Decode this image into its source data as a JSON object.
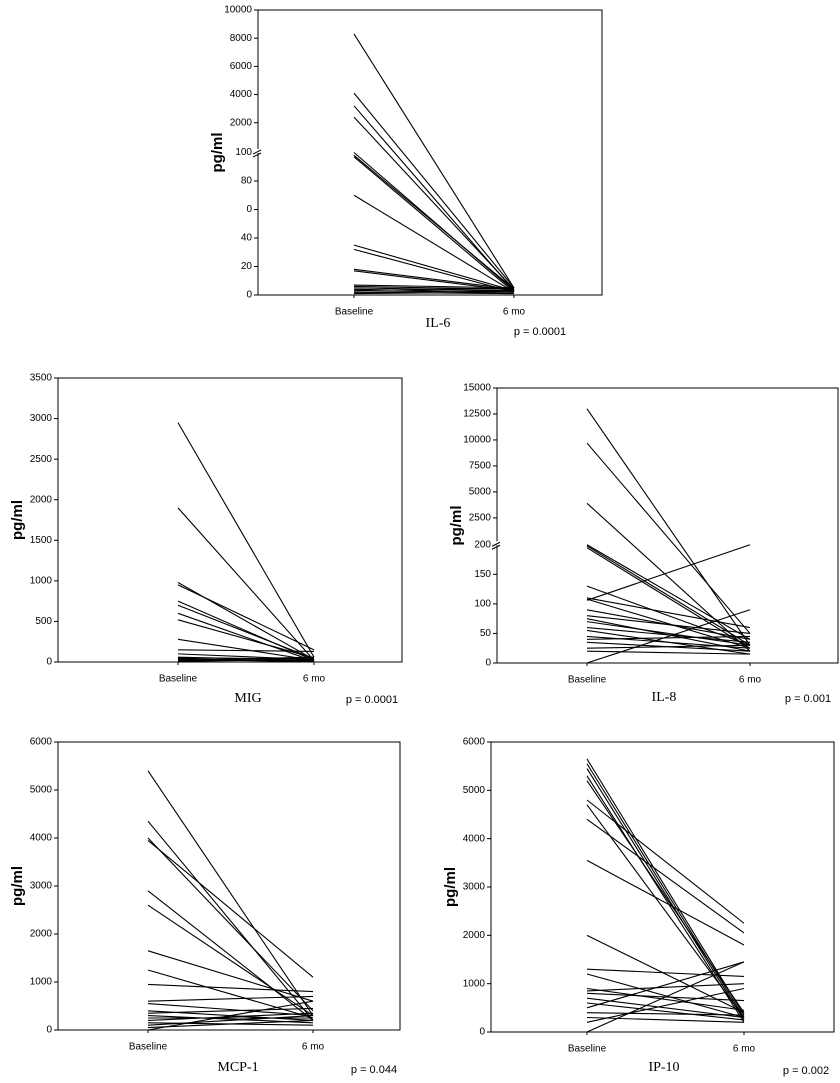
{
  "chart_data": [
    {
      "type": "line",
      "title": "IL-6",
      "annotation": "p = 0.0001",
      "y_label": "pg/ml",
      "categories": [
        "Baseline",
        "6 mo"
      ],
      "ylim": [
        0,
        10000
      ],
      "axis_break": 100,
      "yticks": [
        0,
        20,
        40,
        {
          "value": 60,
          "label": "0"
        },
        80,
        100,
        2000,
        4000,
        6000,
        8000,
        10000
      ],
      "color": "#000000",
      "series": [
        {
          "values": [
            8300,
            5
          ]
        },
        {
          "values": [
            4100,
            5
          ]
        },
        {
          "values": [
            3200,
            3
          ]
        },
        {
          "values": [
            2400,
            4
          ]
        },
        {
          "values": [
            100,
            3
          ]
        },
        {
          "values": [
            98,
            4
          ]
        },
        {
          "values": [
            97,
            2
          ]
        },
        {
          "values": [
            70,
            2
          ]
        },
        {
          "values": [
            35,
            3
          ]
        },
        {
          "values": [
            32,
            2
          ]
        },
        {
          "values": [
            18,
            4
          ]
        },
        {
          "values": [
            17,
            3
          ]
        },
        {
          "values": [
            7,
            5
          ]
        },
        {
          "values": [
            6,
            4
          ]
        },
        {
          "values": [
            5,
            3
          ]
        },
        {
          "values": [
            4,
            2
          ]
        },
        {
          "values": [
            3,
            5
          ]
        },
        {
          "values": [
            2,
            3
          ]
        },
        {
          "values": [
            2,
            1
          ]
        },
        {
          "values": [
            1,
            2
          ]
        }
      ]
    },
    {
      "type": "line",
      "title": "MIG",
      "annotation": "p = 0.0001",
      "y_label": "pg/ml",
      "categories": [
        "Baseline",
        "6 mo"
      ],
      "ylim": [
        0,
        3500
      ],
      "yticks": [
        0,
        500,
        1000,
        1500,
        2000,
        2500,
        3000,
        3500
      ],
      "color": "#000000",
      "series": [
        {
          "values": [
            2950,
            60
          ]
        },
        {
          "values": [
            1900,
            20
          ]
        },
        {
          "values": [
            980,
            30
          ]
        },
        {
          "values": [
            950,
            150
          ]
        },
        {
          "values": [
            750,
            20
          ]
        },
        {
          "values": [
            700,
            40
          ]
        },
        {
          "values": [
            600,
            10
          ]
        },
        {
          "values": [
            520,
            50
          ]
        },
        {
          "values": [
            280,
            20
          ]
        },
        {
          "values": [
            150,
            130
          ]
        },
        {
          "values": [
            100,
            30
          ]
        },
        {
          "values": [
            60,
            20
          ]
        },
        {
          "values": [
            50,
            40
          ]
        },
        {
          "values": [
            40,
            10
          ]
        },
        {
          "values": [
            30,
            5
          ]
        },
        {
          "values": [
            20,
            60
          ]
        },
        {
          "values": [
            10,
            30
          ]
        }
      ]
    },
    {
      "type": "line",
      "title": "IL-8",
      "annotation": "p = 0.001",
      "y_label": "pg/ml",
      "categories": [
        "Baseline",
        "6 mo"
      ],
      "ylim": [
        0,
        15000
      ],
      "axis_break": 200,
      "yticks": [
        0,
        50,
        100,
        150,
        200,
        2500,
        5000,
        7500,
        10000,
        12500,
        15000
      ],
      "color": "#000000",
      "series": [
        {
          "values": [
            13000,
            30
          ]
        },
        {
          "values": [
            9700,
            50
          ]
        },
        {
          "values": [
            3900,
            20
          ]
        },
        {
          "values": [
            200,
            40
          ]
        },
        {
          "values": [
            198,
            30
          ]
        },
        {
          "values": [
            195,
            25
          ]
        },
        {
          "values": [
            130,
            30
          ]
        },
        {
          "values": [
            110,
            60
          ]
        },
        {
          "values": [
            108,
            25
          ]
        },
        {
          "values": [
            106,
            200
          ]
        },
        {
          "values": [
            0,
            90
          ]
        },
        {
          "values": [
            90,
            40
          ]
        },
        {
          "values": [
            80,
            50
          ]
        },
        {
          "values": [
            75,
            20
          ]
        },
        {
          "values": [
            70,
            30
          ]
        },
        {
          "values": [
            60,
            35
          ]
        },
        {
          "values": [
            55,
            15
          ]
        },
        {
          "values": [
            45,
            25
          ]
        },
        {
          "values": [
            40,
            45
          ]
        },
        {
          "values": [
            35,
            20
          ]
        },
        {
          "values": [
            25,
            30
          ]
        },
        {
          "values": [
            20,
            15
          ]
        }
      ]
    },
    {
      "type": "line",
      "title": "MCP-1",
      "annotation": "p = 0.044",
      "y_label": "pg/ml",
      "categories": [
        "Baseline",
        "6 mo"
      ],
      "ylim": [
        0,
        6000
      ],
      "yticks": [
        0,
        1000,
        2000,
        3000,
        4000,
        5000,
        6000
      ],
      "color": "#000000",
      "series": [
        {
          "values": [
            5400,
            300
          ]
        },
        {
          "values": [
            4350,
            200
          ]
        },
        {
          "values": [
            4000,
            400
          ]
        },
        {
          "values": [
            3950,
            1100
          ]
        },
        {
          "values": [
            2900,
            200
          ]
        },
        {
          "values": [
            2600,
            300
          ]
        },
        {
          "values": [
            1650,
            600
          ]
        },
        {
          "values": [
            1250,
            250
          ]
        },
        {
          "values": [
            950,
            800
          ]
        },
        {
          "values": [
            600,
            700
          ]
        },
        {
          "values": [
            550,
            300
          ]
        },
        {
          "values": [
            400,
            200
          ]
        },
        {
          "values": [
            350,
            450
          ]
        },
        {
          "values": [
            300,
            150
          ]
        },
        {
          "values": [
            250,
            250
          ]
        },
        {
          "values": [
            200,
            350
          ]
        },
        {
          "values": [
            150,
            100
          ]
        },
        {
          "values": [
            100,
            300
          ]
        },
        {
          "values": [
            50,
            200
          ]
        },
        {
          "values": [
            0,
            600
          ]
        }
      ]
    },
    {
      "type": "line",
      "title": "IP-10",
      "annotation": "p = 0.002",
      "y_label": "pg/ml",
      "categories": [
        "Baseline",
        "6 mo"
      ],
      "ylim": [
        0,
        6000
      ],
      "yticks": [
        0,
        1000,
        2000,
        3000,
        4000,
        5000,
        6000
      ],
      "color": "#000000",
      "series": [
        {
          "values": [
            5650,
            350
          ]
        },
        {
          "values": [
            5550,
            300
          ]
        },
        {
          "values": [
            5450,
            250
          ]
        },
        {
          "values": [
            5300,
            200
          ]
        },
        {
          "values": [
            5200,
            400
          ]
        },
        {
          "values": [
            4800,
            2250
          ]
        },
        {
          "values": [
            4700,
            300
          ]
        },
        {
          "values": [
            4400,
            2050
          ]
        },
        {
          "values": [
            3550,
            1800
          ]
        },
        {
          "values": [
            2000,
            400
          ]
        },
        {
          "values": [
            1300,
            1150
          ]
        },
        {
          "values": [
            1200,
            300
          ]
        },
        {
          "values": [
            900,
            450
          ]
        },
        {
          "values": [
            850,
            1000
          ]
        },
        {
          "values": [
            800,
            650
          ]
        },
        {
          "values": [
            700,
            300
          ]
        },
        {
          "values": [
            600,
            250
          ]
        },
        {
          "values": [
            500,
            1450
          ]
        },
        {
          "values": [
            400,
            350
          ]
        },
        {
          "values": [
            300,
            200
          ]
        },
        {
          "values": [
            200,
            900
          ]
        },
        {
          "values": [
            0,
            1450
          ]
        }
      ]
    }
  ]
}
